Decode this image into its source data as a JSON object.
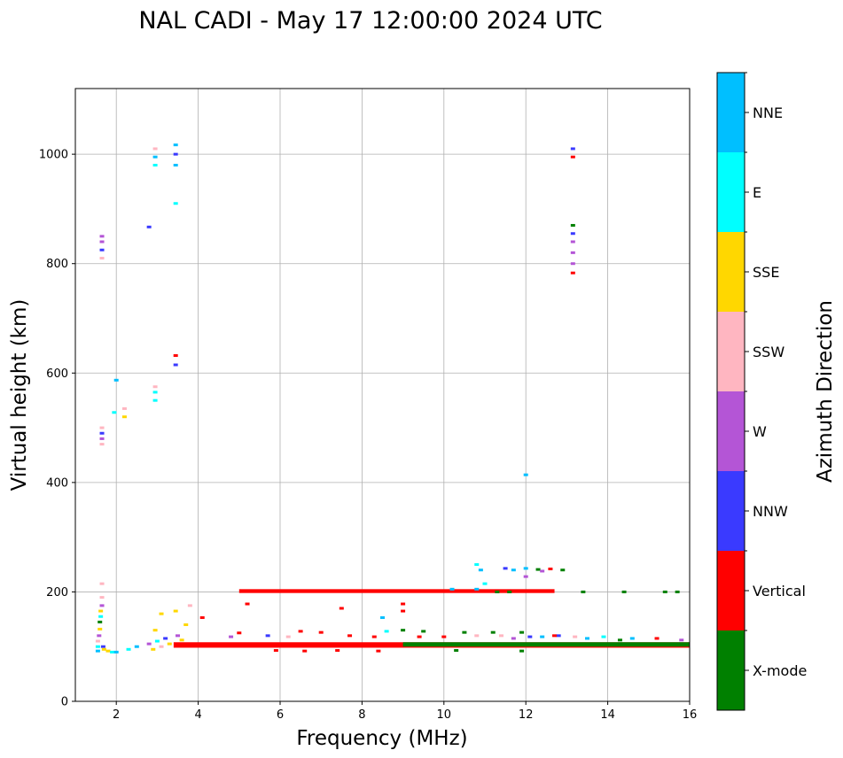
{
  "chart_data": {
    "type": "scatter",
    "title": "NAL CADI - May 17 12:00:00 2024 UTC",
    "xlabel": "Frequency (MHz)",
    "ylabel": "Virtual height (km)",
    "xlim": [
      1.0,
      16.0
    ],
    "ylim": [
      0,
      1120
    ],
    "xticks": [
      2,
      4,
      6,
      8,
      10,
      12,
      14,
      16
    ],
    "yticks": [
      0,
      200,
      400,
      600,
      800,
      1000
    ],
    "grid": true,
    "colorbar": {
      "label": "Azimuth Direction",
      "categories": [
        "X-mode",
        "Vertical",
        "NNW",
        "W",
        "SSW",
        "SSE",
        "E",
        "NNE"
      ],
      "colors": [
        "#008000",
        "#ff0000",
        "#3a3aff",
        "#b455d6",
        "#ffb6c1",
        "#ffd700",
        "#00ffff",
        "#00bfff"
      ]
    },
    "bands": [
      {
        "category": "Vertical",
        "x_start": 3.4,
        "x_end": 16.0,
        "y_low": 98,
        "y_high": 108
      },
      {
        "category": "Vertical",
        "x_start": 5.0,
        "x_end": 12.7,
        "y_low": 198,
        "y_high": 205
      },
      {
        "category": "X-mode",
        "x_start": 9.0,
        "x_end": 16.0,
        "y_low": 100,
        "y_high": 108
      }
    ],
    "points": [
      {
        "f": 1.55,
        "h": 92,
        "category": "NNE"
      },
      {
        "f": 1.55,
        "h": 100,
        "category": "E"
      },
      {
        "f": 1.55,
        "h": 110,
        "category": "SSW"
      },
      {
        "f": 1.58,
        "h": 120,
        "category": "W"
      },
      {
        "f": 1.6,
        "h": 132,
        "category": "SSE"
      },
      {
        "f": 1.6,
        "h": 145,
        "category": "X-mode"
      },
      {
        "f": 1.62,
        "h": 155,
        "category": "E"
      },
      {
        "f": 1.62,
        "h": 165,
        "category": "SSE"
      },
      {
        "f": 1.65,
        "h": 175,
        "category": "W"
      },
      {
        "f": 1.65,
        "h": 190,
        "category": "SSW"
      },
      {
        "f": 1.65,
        "h": 215,
        "category": "SSW"
      },
      {
        "f": 1.68,
        "h": 100,
        "category": "NNW"
      },
      {
        "f": 1.7,
        "h": 95,
        "category": "SSE"
      },
      {
        "f": 1.8,
        "h": 92,
        "category": "SSE"
      },
      {
        "f": 1.9,
        "h": 90,
        "category": "E"
      },
      {
        "f": 2.0,
        "h": 90,
        "category": "NNE"
      },
      {
        "f": 2.3,
        "h": 95,
        "category": "E"
      },
      {
        "f": 2.5,
        "h": 100,
        "category": "NNE"
      },
      {
        "f": 2.8,
        "h": 105,
        "category": "W"
      },
      {
        "f": 2.9,
        "h": 95,
        "category": "SSE"
      },
      {
        "f": 3.0,
        "h": 110,
        "category": "E"
      },
      {
        "f": 3.1,
        "h": 100,
        "category": "SSW"
      },
      {
        "f": 3.2,
        "h": 115,
        "category": "NNW"
      },
      {
        "f": 3.3,
        "h": 105,
        "category": "SSE"
      },
      {
        "f": 3.5,
        "h": 120,
        "category": "W"
      },
      {
        "f": 3.6,
        "h": 112,
        "category": "SSE"
      },
      {
        "f": 2.95,
        "h": 130,
        "category": "SSE"
      },
      {
        "f": 3.1,
        "h": 160,
        "category": "SSE"
      },
      {
        "f": 3.45,
        "h": 165,
        "category": "SSE"
      },
      {
        "f": 3.7,
        "h": 140,
        "category": "SSE"
      },
      {
        "f": 3.8,
        "h": 175,
        "category": "SSW"
      },
      {
        "f": 1.65,
        "h": 470,
        "category": "SSW"
      },
      {
        "f": 1.65,
        "h": 480,
        "category": "W"
      },
      {
        "f": 1.65,
        "h": 490,
        "category": "NNW"
      },
      {
        "f": 1.65,
        "h": 500,
        "category": "SSW"
      },
      {
        "f": 1.65,
        "h": 810,
        "category": "SSW"
      },
      {
        "f": 1.65,
        "h": 825,
        "category": "NNW"
      },
      {
        "f": 1.65,
        "h": 840,
        "category": "W"
      },
      {
        "f": 1.65,
        "h": 850,
        "category": "W"
      },
      {
        "f": 1.95,
        "h": 528,
        "category": "E"
      },
      {
        "f": 2.0,
        "h": 587,
        "category": "NNE"
      },
      {
        "f": 2.2,
        "h": 520,
        "category": "SSE"
      },
      {
        "f": 2.2,
        "h": 535,
        "category": "SSW"
      },
      {
        "f": 2.95,
        "h": 550,
        "category": "E"
      },
      {
        "f": 2.95,
        "h": 565,
        "category": "E"
      },
      {
        "f": 2.95,
        "h": 575,
        "category": "SSW"
      },
      {
        "f": 2.8,
        "h": 867,
        "category": "NNW"
      },
      {
        "f": 2.95,
        "h": 980,
        "category": "E"
      },
      {
        "f": 2.95,
        "h": 995,
        "category": "NNE"
      },
      {
        "f": 2.95,
        "h": 1010,
        "category": "SSW"
      },
      {
        "f": 3.45,
        "h": 615,
        "category": "NNW"
      },
      {
        "f": 3.45,
        "h": 632,
        "category": "Vertical"
      },
      {
        "f": 3.45,
        "h": 910,
        "category": "E"
      },
      {
        "f": 3.45,
        "h": 980,
        "category": "NNE"
      },
      {
        "f": 3.45,
        "h": 1000,
        "category": "NNW"
      },
      {
        "f": 3.45,
        "h": 1017,
        "category": "NNE"
      },
      {
        "f": 13.15,
        "h": 783,
        "category": "Vertical"
      },
      {
        "f": 13.15,
        "h": 800,
        "category": "W"
      },
      {
        "f": 13.15,
        "h": 820,
        "category": "W"
      },
      {
        "f": 13.15,
        "h": 840,
        "category": "W"
      },
      {
        "f": 13.15,
        "h": 855,
        "category": "NNW"
      },
      {
        "f": 13.15,
        "h": 870,
        "category": "X-mode"
      },
      {
        "f": 13.15,
        "h": 995,
        "category": "Vertical"
      },
      {
        "f": 13.15,
        "h": 1010,
        "category": "NNW"
      },
      {
        "f": 12.0,
        "h": 414,
        "category": "NNE"
      },
      {
        "f": 10.8,
        "h": 250,
        "category": "E"
      },
      {
        "f": 10.9,
        "h": 240,
        "category": "NNE"
      },
      {
        "f": 11.0,
        "h": 215,
        "category": "E"
      },
      {
        "f": 10.8,
        "h": 205,
        "category": "NNE"
      },
      {
        "f": 11.5,
        "h": 243,
        "category": "NNW"
      },
      {
        "f": 11.7,
        "h": 240,
        "category": "NNE"
      },
      {
        "f": 12.0,
        "h": 243,
        "category": "NNE"
      },
      {
        "f": 12.3,
        "h": 241,
        "category": "X-mode"
      },
      {
        "f": 12.6,
        "h": 242,
        "category": "Vertical"
      },
      {
        "f": 12.9,
        "h": 240,
        "category": "X-mode"
      },
      {
        "f": 12.0,
        "h": 228,
        "category": "W"
      },
      {
        "f": 12.4,
        "h": 238,
        "category": "W"
      },
      {
        "f": 10.2,
        "h": 205,
        "category": "NNE"
      },
      {
        "f": 11.3,
        "h": 200,
        "category": "X-mode"
      },
      {
        "f": 11.6,
        "h": 200,
        "category": "X-mode"
      },
      {
        "f": 13.4,
        "h": 200,
        "category": "X-mode"
      },
      {
        "f": 14.4,
        "h": 200,
        "category": "X-mode"
      },
      {
        "f": 15.4,
        "h": 200,
        "category": "X-mode"
      },
      {
        "f": 15.7,
        "h": 200,
        "category": "X-mode"
      },
      {
        "f": 8.5,
        "h": 153,
        "category": "NNE"
      },
      {
        "f": 9.0,
        "h": 178,
        "category": "Vertical"
      },
      {
        "f": 9.0,
        "h": 165,
        "category": "Vertical"
      },
      {
        "f": 7.5,
        "h": 170,
        "category": "Vertical"
      },
      {
        "f": 5.2,
        "h": 178,
        "category": "Vertical"
      },
      {
        "f": 4.1,
        "h": 153,
        "category": "Vertical"
      },
      {
        "f": 9.0,
        "h": 130,
        "category": "X-mode"
      },
      {
        "f": 9.5,
        "h": 128,
        "category": "X-mode"
      },
      {
        "f": 10.5,
        "h": 126,
        "category": "X-mode"
      },
      {
        "f": 11.2,
        "h": 126,
        "category": "X-mode"
      },
      {
        "f": 11.9,
        "h": 126,
        "category": "X-mode"
      },
      {
        "f": 8.6,
        "h": 128,
        "category": "E"
      },
      {
        "f": 10.8,
        "h": 120,
        "category": "SSW"
      },
      {
        "f": 11.4,
        "h": 120,
        "category": "SSW"
      },
      {
        "f": 11.7,
        "h": 115,
        "category": "W"
      },
      {
        "f": 12.1,
        "h": 118,
        "category": "NNW"
      },
      {
        "f": 12.4,
        "h": 118,
        "category": "NNE"
      },
      {
        "f": 12.8,
        "h": 120,
        "category": "NNW"
      },
      {
        "f": 13.2,
        "h": 118,
        "category": "SSW"
      },
      {
        "f": 13.5,
        "h": 115,
        "category": "NNE"
      },
      {
        "f": 13.9,
        "h": 118,
        "category": "E"
      },
      {
        "f": 14.6,
        "h": 115,
        "category": "NNE"
      },
      {
        "f": 15.2,
        "h": 115,
        "category": "Vertical"
      },
      {
        "f": 15.8,
        "h": 112,
        "category": "W"
      },
      {
        "f": 12.7,
        "h": 120,
        "category": "Vertical"
      },
      {
        "f": 14.3,
        "h": 112,
        "category": "X-mode"
      },
      {
        "f": 11.9,
        "h": 92,
        "category": "X-mode"
      },
      {
        "f": 10.3,
        "h": 93,
        "category": "X-mode"
      },
      {
        "f": 6.5,
        "h": 128,
        "category": "Vertical"
      },
      {
        "f": 7.0,
        "h": 126,
        "category": "Vertical"
      },
      {
        "f": 5.0,
        "h": 125,
        "category": "Vertical"
      },
      {
        "f": 5.7,
        "h": 120,
        "category": "NNW"
      },
      {
        "f": 4.8,
        "h": 118,
        "category": "W"
      },
      {
        "f": 6.2,
        "h": 118,
        "category": "SSW"
      },
      {
        "f": 7.7,
        "h": 120,
        "category": "Vertical"
      },
      {
        "f": 8.3,
        "h": 118,
        "category": "Vertical"
      },
      {
        "f": 9.4,
        "h": 118,
        "category": "Vertical"
      },
      {
        "f": 10.0,
        "h": 118,
        "category": "Vertical"
      },
      {
        "f": 6.6,
        "h": 92,
        "category": "Vertical"
      },
      {
        "f": 8.4,
        "h": 92,
        "category": "Vertical"
      },
      {
        "f": 5.9,
        "h": 93,
        "category": "Vertical"
      },
      {
        "f": 7.4,
        "h": 93,
        "category": "Vertical"
      }
    ]
  }
}
